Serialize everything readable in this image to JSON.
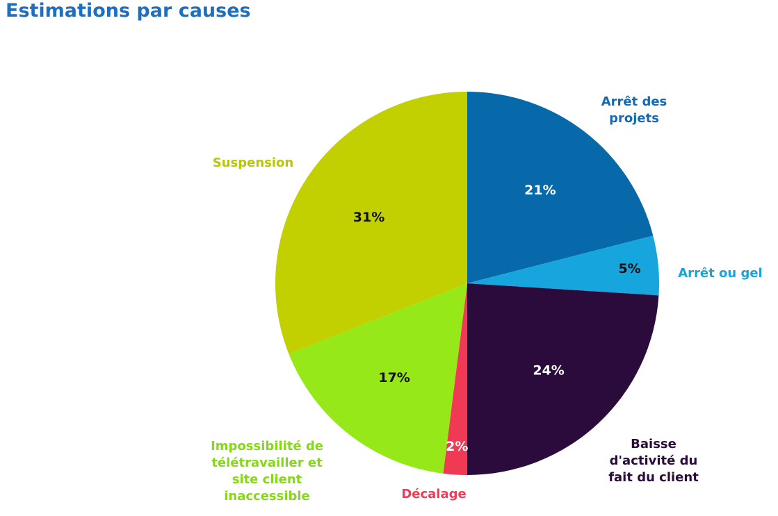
{
  "chart_data": {
    "type": "pie",
    "title": "Estimations par causes",
    "start_angle_deg": 0,
    "direction": "clockwise",
    "slices": [
      {
        "label": [
          "Arrêt des",
          "projets"
        ],
        "value": 21,
        "value_label": "21%",
        "color": "#0769a9",
        "label_color": "#1668b0",
        "value_label_color": "#ffffff"
      },
      {
        "label": [
          "Arrêt ou gel"
        ],
        "value": 5,
        "value_label": "5%",
        "color": "#16a6dd",
        "label_color": "#1aa3d8",
        "value_label_color": "#111111"
      },
      {
        "label": [
          "Baisse",
          "d'activité du",
          "fait du client"
        ],
        "value": 24,
        "value_label": "24%",
        "color": "#2a0b3c",
        "label_color": "#2a0b3c",
        "value_label_color": "#ffffff"
      },
      {
        "label": [
          "Décalage"
        ],
        "value": 2,
        "value_label": "2%",
        "color": "#f03a55",
        "label_color": "#ef3b55",
        "value_label_color": "#ffffff"
      },
      {
        "label": [
          "Impossibilité de",
          "télétravailler et",
          "site client",
          "inaccessible"
        ],
        "value": 17,
        "value_label": "17%",
        "color": "#96e818",
        "label_color": "#86d816",
        "value_label_color": "#111111"
      },
      {
        "label": [
          "Suspension"
        ],
        "value": 31,
        "value_label": "31%",
        "color": "#c2cf00",
        "label_color": "#b8c700",
        "value_label_color": "#111111"
      }
    ]
  }
}
